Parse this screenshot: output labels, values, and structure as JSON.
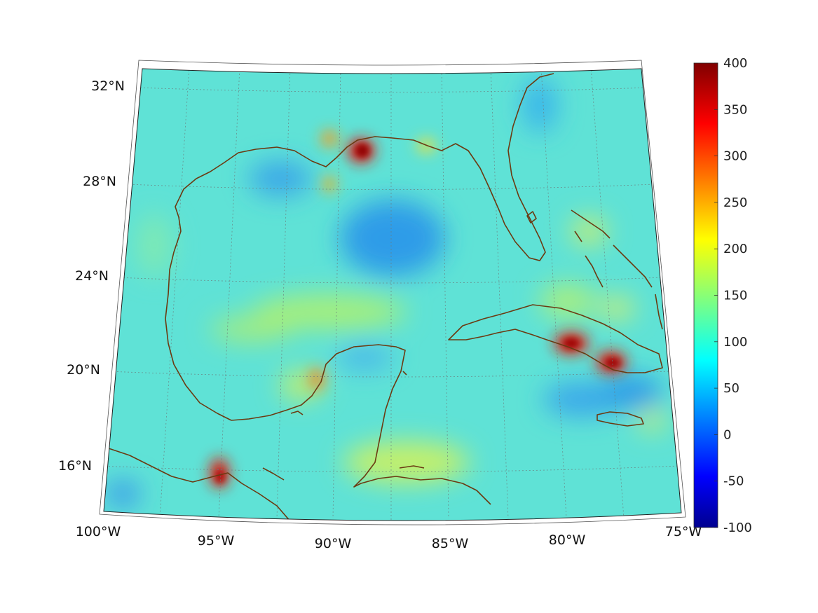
{
  "map": {
    "lat_labels": [
      "32°N",
      "28°N",
      "24°N",
      "20°N",
      "16°N"
    ],
    "lon_labels": [
      "100°W",
      "95°W",
      "90°W",
      "85°W",
      "80°W",
      "75°W"
    ],
    "colorbar": {
      "min": -100,
      "max": 400,
      "ticks": [
        "400",
        "350",
        "300",
        "250",
        "200",
        "150",
        "100",
        "50",
        "0",
        "-50",
        "-100"
      ],
      "colormap": "jet"
    },
    "colors": {
      "background_field": "#5ee6d6",
      "coastline": "#6b3a12",
      "grid": "#7a8a8a"
    }
  }
}
